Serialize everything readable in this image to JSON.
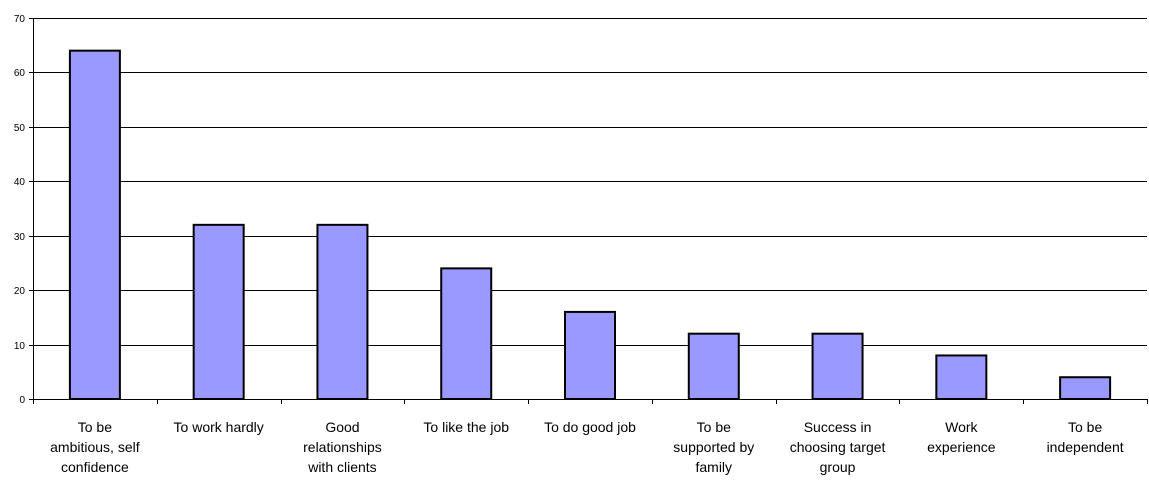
{
  "chart_data": {
    "type": "bar",
    "categories": [
      [
        "To be",
        "ambitious, self",
        "confidence"
      ],
      [
        "To work hardly"
      ],
      [
        "Good",
        "relationships",
        "with clients"
      ],
      [
        "To like the job"
      ],
      [
        "To do good job"
      ],
      [
        "To be",
        "supported by",
        "family"
      ],
      [
        "Success in",
        "choosing target",
        "group"
      ],
      [
        "Work",
        "experience"
      ],
      [
        "To be",
        "independent"
      ]
    ],
    "values": [
      64,
      32,
      32,
      24,
      16,
      12,
      12,
      8,
      4
    ],
    "title": "",
    "xlabel": "",
    "ylabel": "",
    "ylim": [
      0,
      70
    ],
    "yticks": [
      "0",
      "10",
      "20",
      "30",
      "40",
      "50",
      "60",
      "70"
    ],
    "grid": true,
    "legend": "none",
    "colors": {
      "bar_fill": "#9999ff",
      "bar_stroke": "#000000",
      "grid": "#000000"
    }
  }
}
